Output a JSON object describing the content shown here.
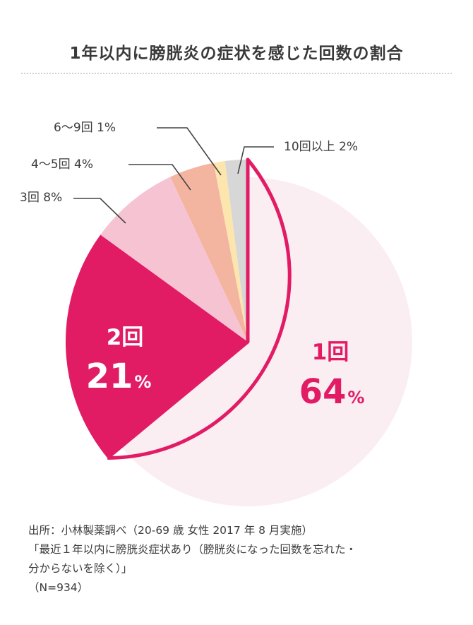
{
  "title": "1年以内に膀胱炎の症状を感じた回数の割合",
  "colors": {
    "accent": "#e21b65",
    "slice_1": "#fbeef2",
    "slice_2": "#e21b65",
    "slice_3": "#f6c3d3",
    "slice_4": "#f4b5a0",
    "slice_5": "#fde5ae",
    "slice_6": "#d7d7d7",
    "leader": "#444444"
  },
  "chart_data": {
    "type": "pie",
    "title": "1年以内に膀胱炎の症状を感じた回数の割合",
    "slices": [
      {
        "category": "1回",
        "value": 64,
        "label": "1回",
        "pct": "64",
        "unit": "%"
      },
      {
        "category": "2回",
        "value": 21,
        "label": "2回",
        "pct": "21",
        "unit": "%"
      },
      {
        "category": "3回",
        "value": 8,
        "label": "3回 8%"
      },
      {
        "category": "4〜5回",
        "value": 4,
        "label": "4〜5回 4%"
      },
      {
        "category": "6〜9回",
        "value": 1,
        "label": "6〜9回 1%"
      },
      {
        "category": "10回以上",
        "value": 2,
        "label": "10回以上 2%"
      }
    ]
  },
  "footer": {
    "lines": [
      "出所：小林製薬調べ（20-69 歳 女性 2017 年 8 月実施）",
      "「最近１年以内に膀胱炎症状あり（膀胱炎になった回数を忘れた・",
      "分からないを除く）」",
      "（N=934）"
    ]
  }
}
